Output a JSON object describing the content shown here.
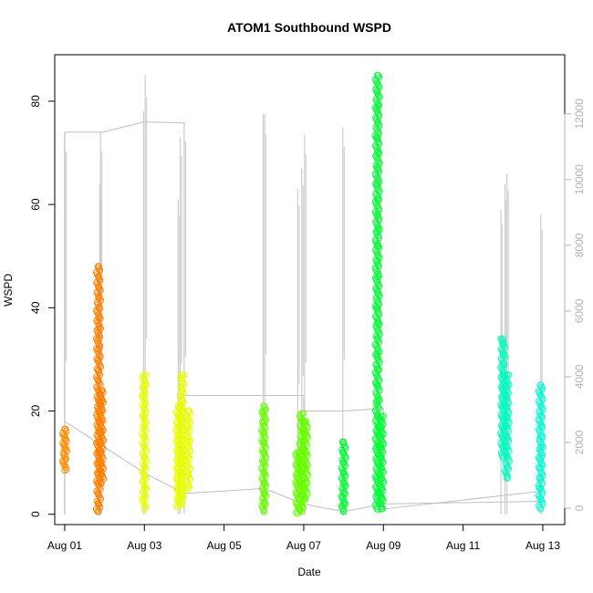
{
  "chart_data": {
    "type": "scatter",
    "title": "ATOM1 Southbound WSPD",
    "xlabel": "Date",
    "ylabel": "WSPD",
    "x_ticks": [
      "Aug 01",
      "Aug 03",
      "Aug 05",
      "Aug 07",
      "Aug 09",
      "Aug 11",
      "Aug 13"
    ],
    "x_tick_days": [
      1,
      3,
      5,
      7,
      9,
      11,
      13
    ],
    "xlim": [
      1,
      13.3
    ],
    "ylim": [
      -2,
      89
    ],
    "y_ticks": [
      0,
      20,
      40,
      60,
      80
    ],
    "y_right_ticks": [
      0,
      2000,
      4000,
      6000,
      8000,
      10000,
      12000
    ],
    "y_right_lim": [
      -500,
      13800
    ],
    "grid": false,
    "point_series": [
      {
        "day": 1.0,
        "values": [
          8.5,
          9.5,
          10.5,
          11.5,
          12.5,
          13.5,
          14.5,
          15.5,
          16.5
        ],
        "color": "#ff8c00"
      },
      {
        "day": 1.85,
        "values": [
          0.5,
          2,
          4,
          6,
          8,
          10,
          12,
          14,
          16,
          18,
          20,
          22,
          24,
          26,
          28,
          30,
          32,
          34,
          36,
          38,
          40,
          42,
          44,
          46,
          48
        ],
        "color": "#ff8000"
      },
      {
        "day": 1.92,
        "values": [
          6,
          8,
          10,
          12,
          14,
          16,
          18,
          20,
          22,
          24
        ],
        "color": "#ff8000"
      },
      {
        "day": 3.0,
        "values": [
          1,
          3,
          5,
          7,
          9,
          11,
          13,
          15,
          17,
          19,
          21,
          23,
          25,
          27
        ],
        "color": "#e6ff00"
      },
      {
        "day": 3.85,
        "values": [
          1.5,
          3,
          5,
          7,
          9,
          11,
          13,
          15,
          17,
          19,
          21
        ],
        "color": "#e6ff00"
      },
      {
        "day": 3.95,
        "values": [
          2,
          4,
          6,
          8,
          10,
          12,
          14,
          16,
          18,
          20,
          22,
          24,
          27
        ],
        "color": "#e6ff00"
      },
      {
        "day": 4.1,
        "values": [
          5,
          8,
          11,
          14,
          17,
          20
        ],
        "color": "#e6ff00"
      },
      {
        "day": 6.0,
        "values": [
          0.5,
          2,
          4,
          6,
          8,
          10,
          12,
          14,
          16,
          18,
          20,
          21
        ],
        "color": "#66ff00"
      },
      {
        "day": 6.85,
        "values": [
          0.2,
          2,
          4,
          6,
          8,
          10,
          12
        ],
        "color": "#66ff00"
      },
      {
        "day": 6.95,
        "values": [
          0.5,
          2,
          4,
          6,
          8,
          10,
          12,
          14,
          16,
          18,
          19.5
        ],
        "color": "#66ff00"
      },
      {
        "day": 7.05,
        "values": [
          3,
          6,
          9,
          12,
          15,
          18
        ],
        "color": "#66ff00"
      },
      {
        "day": 8.0,
        "values": [
          0.5,
          2,
          4,
          6,
          8,
          10,
          12,
          14
        ],
        "color": "#00ff33"
      },
      {
        "day": 8.85,
        "values": [
          1,
          4,
          7,
          10,
          13,
          16,
          19,
          22,
          25,
          28,
          31,
          34,
          37,
          40,
          43,
          46,
          49,
          52,
          55,
          58,
          61,
          64,
          67,
          70,
          73,
          76,
          79,
          82,
          85
        ],
        "color": "#00ff33"
      },
      {
        "day": 8.95,
        "values": [
          1,
          3,
          5,
          7,
          9,
          11,
          13,
          15,
          17,
          19
        ],
        "color": "#00ff33"
      },
      {
        "day": 12.0,
        "values": [
          11,
          13,
          15,
          17,
          19,
          21,
          23,
          25,
          27,
          29,
          31,
          33,
          34
        ],
        "color": "#00ffbb"
      },
      {
        "day": 12.1,
        "values": [
          7,
          9,
          11,
          13,
          15,
          17,
          19,
          21,
          23,
          25,
          27
        ],
        "color": "#00ffbb"
      },
      {
        "day": 12.95,
        "values": [
          1,
          3,
          5,
          7,
          9,
          11,
          13,
          15,
          17,
          19,
          21,
          23,
          25
        ],
        "color": "#00ffcc"
      }
    ],
    "spike_lines": [
      {
        "day": 1.0,
        "top": 74,
        "color": "#bfbfbf"
      },
      {
        "day": 1.85,
        "top": 48,
        "color": "#cccccc"
      },
      {
        "day": 1.88,
        "top": 64,
        "color": "#cccccc"
      },
      {
        "day": 1.9,
        "top": 74,
        "color": "#cccccc"
      },
      {
        "day": 2.98,
        "top": 78,
        "color": "#cccccc"
      },
      {
        "day": 3.02,
        "top": 85,
        "color": "#cccccc"
      },
      {
        "day": 3.85,
        "top": 61,
        "color": "#cccccc"
      },
      {
        "day": 3.9,
        "top": 73,
        "color": "#cccccc"
      },
      {
        "day": 4.0,
        "top": 76,
        "color": "#cccccc"
      },
      {
        "day": 5.98,
        "top": 77.5,
        "color": "#cccccc"
      },
      {
        "day": 6.02,
        "top": 77.5,
        "color": "#cccccc"
      },
      {
        "day": 6.85,
        "top": 63,
        "color": "#cccccc"
      },
      {
        "day": 6.95,
        "top": 67,
        "color": "#cccccc"
      },
      {
        "day": 7.02,
        "top": 73.5,
        "color": "#cccccc"
      },
      {
        "day": 7.98,
        "top": 75,
        "color": "#cccccc"
      },
      {
        "day": 8.9,
        "top": 85,
        "color": "#cccccc"
      },
      {
        "day": 11.95,
        "top": 59,
        "color": "#cccccc"
      },
      {
        "day": 12.05,
        "top": 64,
        "color": "#cccccc"
      },
      {
        "day": 12.1,
        "top": 66,
        "color": "#cccccc"
      },
      {
        "day": 12.95,
        "top": 58,
        "color": "#cccccc"
      }
    ],
    "trace_line": [
      [
        1.0,
        74
      ],
      [
        1.95,
        74
      ],
      [
        1.95,
        74
      ],
      [
        3.0,
        76
      ],
      [
        3.0,
        76
      ],
      [
        4.0,
        75.8
      ],
      [
        4.0,
        23
      ],
      [
        6.0,
        23
      ],
      [
        7.0,
        23
      ],
      [
        7.0,
        20
      ],
      [
        8.0,
        20
      ],
      [
        9.0,
        20.5
      ],
      [
        9.0,
        1
      ],
      [
        13.0,
        4.5
      ]
    ],
    "trace_line_2": [
      [
        1.0,
        18
      ],
      [
        3.0,
        8
      ],
      [
        4.0,
        4
      ],
      [
        6.0,
        5
      ],
      [
        7.0,
        2
      ],
      [
        8.0,
        0.5
      ],
      [
        9.0,
        2
      ],
      [
        13.0,
        2.5
      ]
    ],
    "trace_color": "#bfbfbf"
  }
}
